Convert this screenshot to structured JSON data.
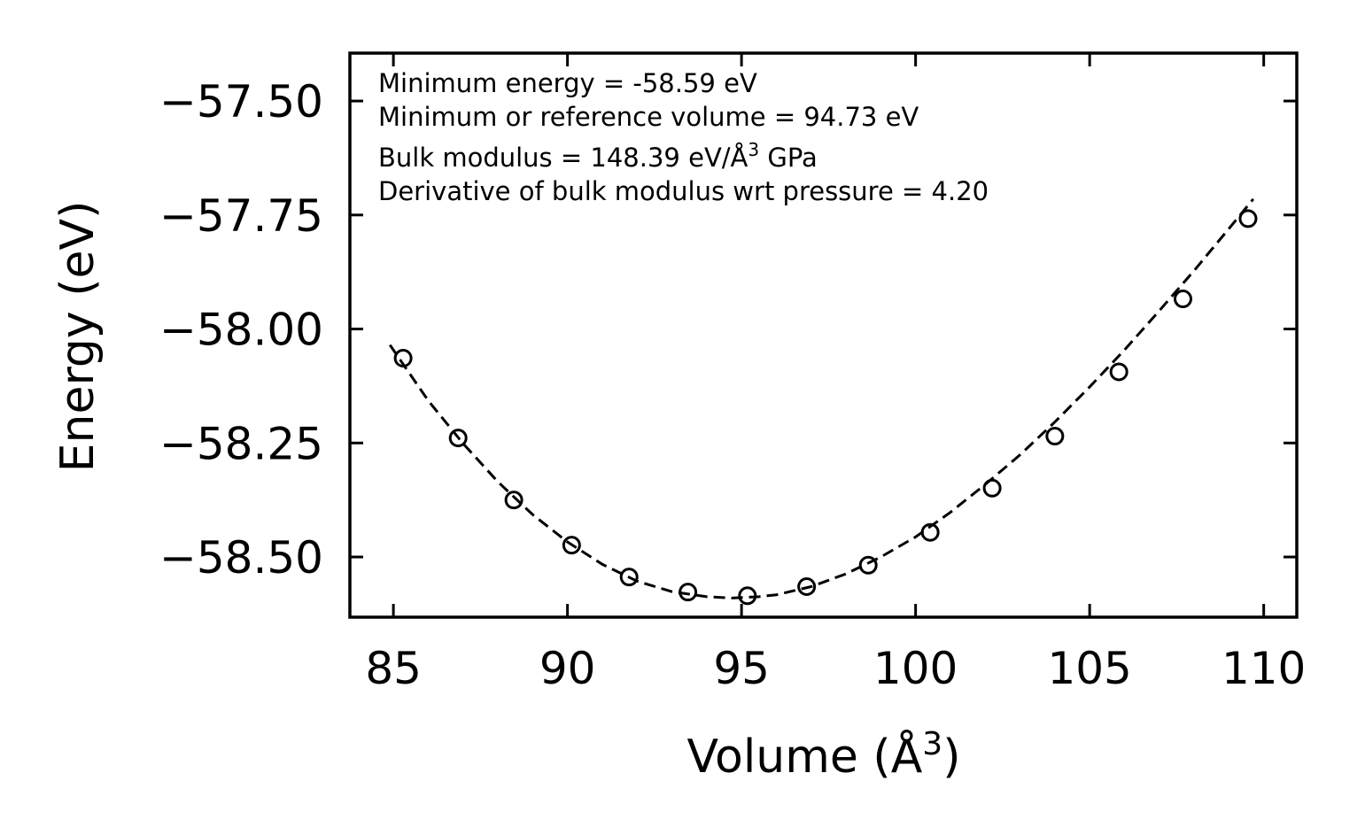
{
  "chart_data": {
    "type": "scatter",
    "title": "",
    "xlabel": "Volume (Å",
    "xlabel_sup": "3",
    "xlabel_end": ")",
    "ylabel": "Energy (eV)",
    "xlim": [
      83.75,
      110.95
    ],
    "ylim": [
      -58.632,
      -57.395
    ],
    "xticks": [
      85,
      90,
      95,
      100,
      105,
      110
    ],
    "yticks": [
      -57.5,
      -57.75,
      -58.0,
      -58.25,
      -58.5
    ],
    "xtick_labels": [
      "85",
      "90",
      "95",
      "100",
      "105",
      "110"
    ],
    "ytick_labels": [
      "−57.50",
      "−57.75",
      "−58.00",
      "−58.25",
      "−58.50"
    ],
    "series": [
      {
        "name": "data",
        "marker": "open-circle",
        "x": [
          85.28,
          86.86,
          88.46,
          90.12,
          91.77,
          93.46,
          95.17,
          96.87,
          98.64,
          100.42,
          102.2,
          104.0,
          105.84,
          107.68,
          109.55
        ],
        "y": [
          -58.064,
          -58.239,
          -58.375,
          -58.474,
          -58.544,
          -58.577,
          -58.585,
          -58.565,
          -58.518,
          -58.446,
          -58.349,
          -58.235,
          -58.094,
          -57.934,
          -57.758
        ]
      },
      {
        "name": "fit",
        "style": "dashed",
        "x": [
          84.9,
          86.0,
          87.0,
          88.0,
          89.0,
          90.0,
          91.0,
          92.0,
          93.0,
          94.0,
          94.73,
          95.5,
          96.0,
          97.0,
          98.0,
          99.0,
          100.0,
          101.0,
          102.0,
          103.0,
          104.0,
          105.0,
          106.0,
          107.0,
          108.0,
          109.0,
          109.7
        ],
        "y": [
          -58.035,
          -58.157,
          -58.251,
          -58.335,
          -58.407,
          -58.467,
          -58.516,
          -58.553,
          -58.576,
          -58.587,
          -58.59,
          -58.587,
          -58.583,
          -58.565,
          -58.537,
          -58.5,
          -58.456,
          -58.402,
          -58.341,
          -58.276,
          -58.204,
          -58.127,
          -58.046,
          -57.96,
          -57.872,
          -57.78,
          -57.715
        ]
      }
    ],
    "annotations": [
      "Minimum energy = -58.59 eV",
      "Minimum or reference volume = 94.73 eV",
      "Bulk modulus = 148.39 eV/Å",
      "3",
      " GPa",
      "Derivative of bulk modulus wrt pressure = 4.20"
    ],
    "grid": false,
    "legend": "none"
  }
}
